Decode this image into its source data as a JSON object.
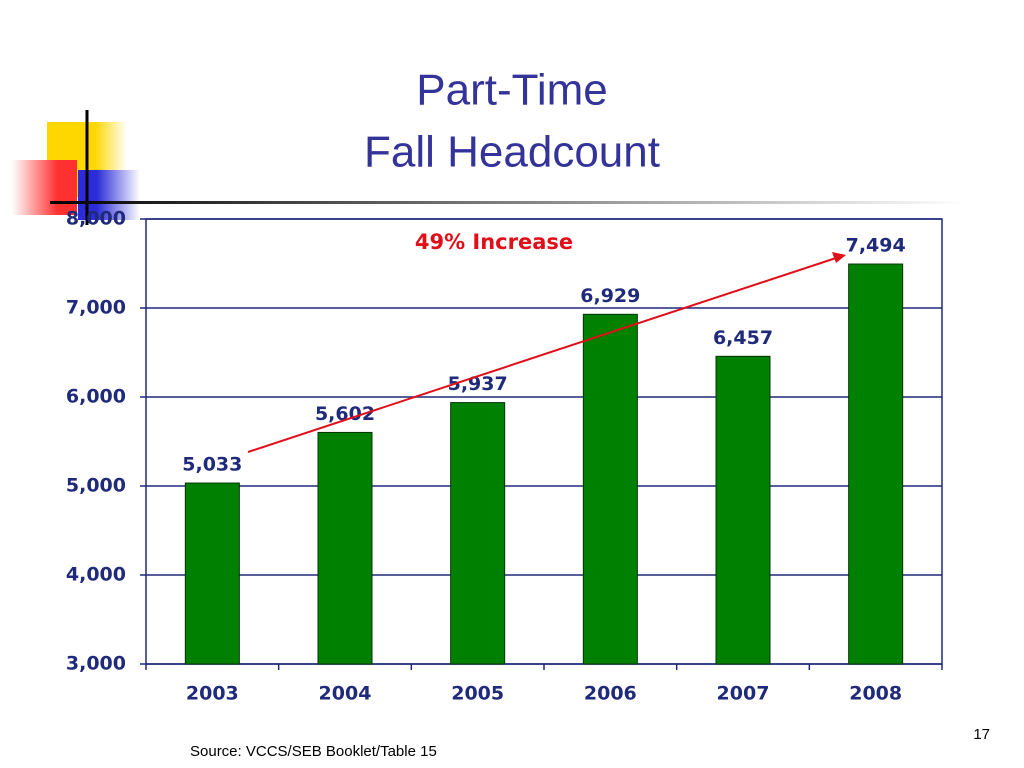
{
  "chart_data": {
    "type": "bar",
    "title": [
      "Part-Time",
      "Fall Headcount"
    ],
    "annotation": "49% Increase",
    "categories": [
      "2003",
      "2004",
      "2005",
      "2006",
      "2007",
      "2008"
    ],
    "values": [
      5033,
      5602,
      5937,
      6929,
      6457,
      7494
    ],
    "value_labels": [
      "5,033",
      "5,602",
      "5,937",
      "6,929",
      "6,457",
      "7,494"
    ],
    "color": "#008000",
    "ylim": [
      3000,
      8000
    ],
    "yticks": [
      {
        "value": 3000,
        "label": "3,000"
      },
      {
        "value": 4000,
        "label": "4,000"
      },
      {
        "value": 5000,
        "label": "5,000"
      },
      {
        "value": 6000,
        "label": "6,000"
      },
      {
        "value": 7000,
        "label": "7,000"
      },
      {
        "value": 8000,
        "label": "8,000"
      }
    ],
    "grid": true
  },
  "source": "Source:  VCCS/SEB Booklet/Table 15",
  "slide_number": "17"
}
